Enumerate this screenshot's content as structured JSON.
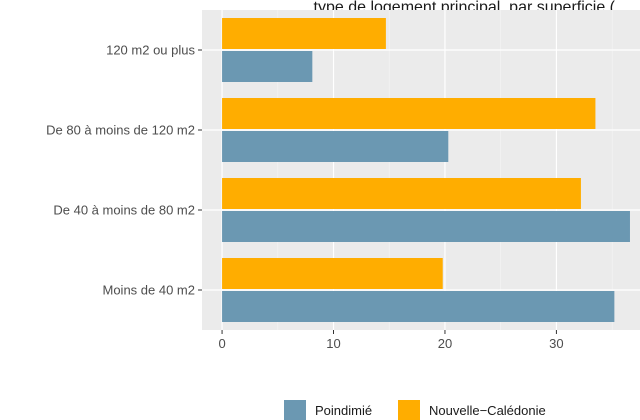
{
  "chart_data": {
    "type": "bar",
    "orientation": "horizontal",
    "title": "… type de logement principal, par superficie (",
    "categories": [
      "Moins de 40 m2",
      "De 40 à moins de 80 m2",
      "De 80 à moins de 120 m2",
      "120 m2 ou plus"
    ],
    "series": [
      {
        "name": "Poindimié",
        "color": "#6b98b2",
        "values": [
          35.2,
          36.6,
          20.3,
          8.1
        ]
      },
      {
        "name": "Nouvelle−Calédonie",
        "color": "#ffad00",
        "values": [
          19.8,
          32.2,
          33.5,
          14.7
        ]
      }
    ],
    "xticks": [
      0,
      10,
      20,
      30
    ],
    "xlim": [
      -1.8,
      37.5
    ],
    "grid": true,
    "legend_position": "bottom"
  }
}
